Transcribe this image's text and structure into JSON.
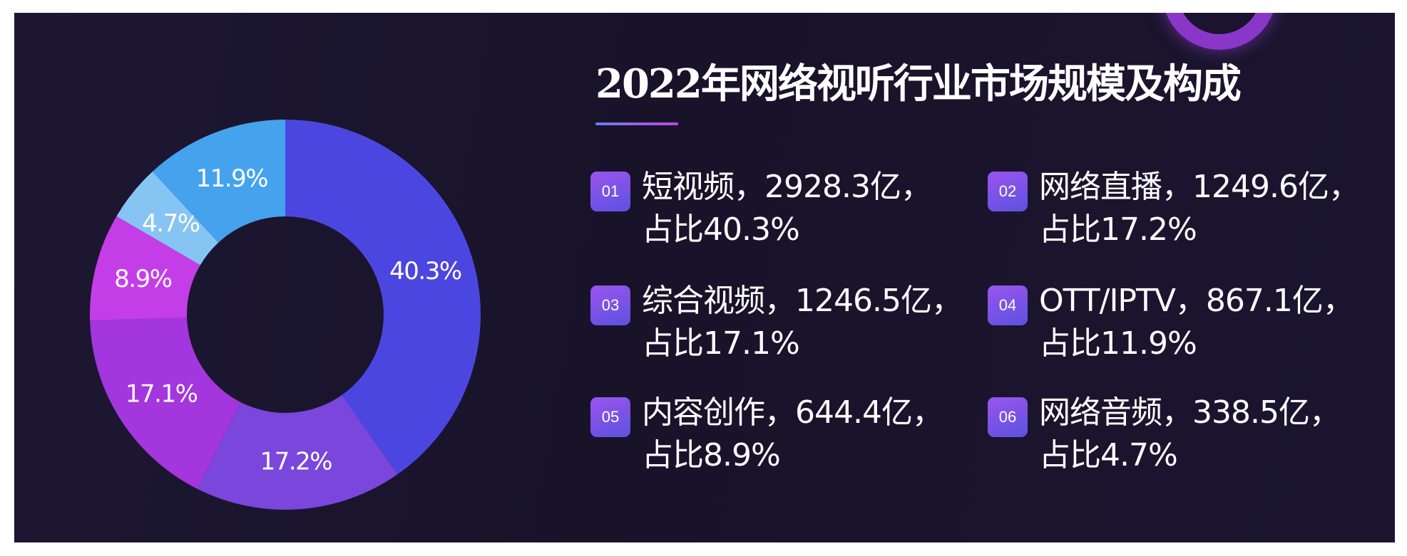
{
  "title": "2022年网络视听行业市场规模及构成",
  "chart_data": {
    "type": "pie",
    "donut": true,
    "unit": "亿",
    "slices": [
      {
        "badge": "01",
        "name": "短视频",
        "value": 2928.3,
        "share_label": "40.3%",
        "share": 40.3,
        "line1": "短视频，2928.3亿，",
        "line2": "占比40.3%",
        "color": "#4c46e0"
      },
      {
        "badge": "02",
        "name": "网络直播",
        "value": 1249.6,
        "share_label": "17.2%",
        "share": 17.2,
        "line1": "网络直播，1249.6亿，",
        "line2": "占比17.2%",
        "color": "#7a46dc"
      },
      {
        "badge": "03",
        "name": "综合视频",
        "value": 1246.5,
        "share_label": "17.1%",
        "share": 17.1,
        "line1": "综合视频，1246.5亿，",
        "line2": "占比17.1%",
        "color": "#a336dc"
      },
      {
        "badge": "04",
        "name": "OTT/IPTV",
        "value": 867.1,
        "share_label": "11.9%",
        "share": 11.9,
        "line1": "OTT/IPTV，867.1亿，",
        "line2": "占比11.9%",
        "color": "#45a3ee"
      },
      {
        "badge": "05",
        "name": "内容创作",
        "value": 644.4,
        "share_label": "8.9%",
        "share": 8.9,
        "line1": "内容创作，644.4亿，",
        "line2": "占比8.9%",
        "color": "#c43ee8"
      },
      {
        "badge": "06",
        "name": "网络音频",
        "value": 338.5,
        "share_label": "4.7%",
        "share": 4.7,
        "line1": "网络音频，338.5亿，",
        "line2": "占比4.7%",
        "color": "#86c4f3"
      }
    ]
  }
}
